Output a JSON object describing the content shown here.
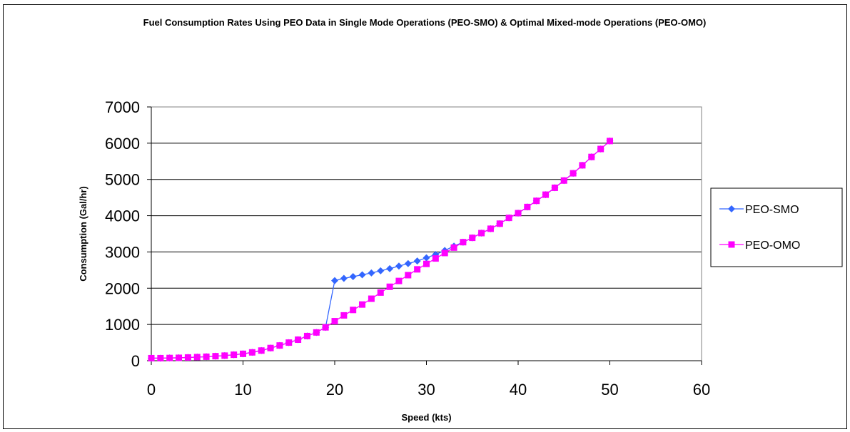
{
  "chart_data": {
    "type": "line",
    "title": "Fuel Consumption Rates Using PEO Data in Single Mode Operations (PEO-SMO) & Optimal Mixed-mode Operations (PEO-OMO)",
    "xlabel": "Speed (kts)",
    "ylabel": "Consumption (Gal/hr)",
    "xlim": [
      0,
      60
    ],
    "ylim": [
      0,
      7000
    ],
    "xticks": [
      "0",
      "10",
      "20",
      "30",
      "40",
      "50",
      "60"
    ],
    "yticks": [
      "0",
      "1000",
      "2000",
      "3000",
      "4000",
      "5000",
      "6000",
      "7000"
    ],
    "grid": "horizontal",
    "legend_position": "right",
    "series": [
      {
        "name": "PEO-SMO",
        "color": "#3366ff",
        "marker": "diamond",
        "x": [
          0,
          1,
          2,
          3,
          4,
          5,
          6,
          7,
          8,
          9,
          10,
          11,
          12,
          13,
          14,
          15,
          16,
          17,
          18,
          19,
          20,
          21,
          22,
          23,
          24,
          25,
          26,
          27,
          28,
          29,
          30,
          31,
          32,
          33,
          34,
          35,
          36,
          37,
          38,
          39,
          40,
          41,
          42,
          43,
          44,
          45,
          46,
          47,
          48,
          49,
          50
        ],
        "y": [
          70,
          70,
          75,
          80,
          90,
          100,
          110,
          125,
          140,
          165,
          190,
          230,
          280,
          350,
          420,
          500,
          580,
          680,
          780,
          920,
          2210,
          2270,
          2320,
          2370,
          2420,
          2480,
          2540,
          2610,
          2680,
          2750,
          2840,
          2930,
          3040,
          3160,
          3270,
          3390,
          3520,
          3640,
          3780,
          3940,
          4070,
          4240,
          4410,
          4580,
          4770,
          4970,
          5170,
          5390,
          5620,
          5840,
          6060
        ]
      },
      {
        "name": "PEO-OMO",
        "color": "#ff00ff",
        "marker": "square",
        "x": [
          0,
          1,
          2,
          3,
          4,
          5,
          6,
          7,
          8,
          9,
          10,
          11,
          12,
          13,
          14,
          15,
          16,
          17,
          18,
          19,
          20,
          21,
          22,
          23,
          24,
          25,
          26,
          27,
          28,
          29,
          30,
          31,
          32,
          33,
          34,
          35,
          36,
          37,
          38,
          39,
          40,
          41,
          42,
          43,
          44,
          45,
          46,
          47,
          48,
          49,
          50
        ],
        "y": [
          70,
          70,
          75,
          80,
          90,
          100,
          110,
          125,
          140,
          165,
          190,
          230,
          280,
          350,
          420,
          500,
          580,
          680,
          780,
          920,
          1090,
          1250,
          1400,
          1550,
          1710,
          1880,
          2040,
          2200,
          2360,
          2520,
          2670,
          2820,
          2970,
          3120,
          3270,
          3390,
          3520,
          3640,
          3780,
          3940,
          4070,
          4240,
          4410,
          4580,
          4770,
          4970,
          5170,
          5390,
          5620,
          5840,
          6060
        ]
      }
    ]
  }
}
